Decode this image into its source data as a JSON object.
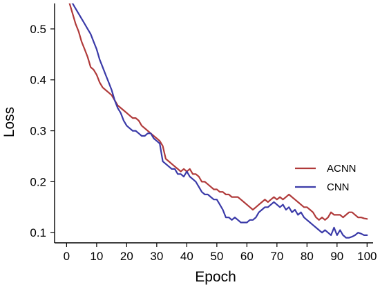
{
  "chart_data": {
    "type": "line",
    "title": "",
    "xlabel": "Epoch",
    "ylabel": "Loss",
    "xlim": [
      -4,
      102
    ],
    "ylim": [
      0.08,
      0.55
    ],
    "xticks": [
      0,
      10,
      20,
      30,
      40,
      50,
      60,
      70,
      80,
      90,
      100
    ],
    "xtick_labels": [
      "0",
      "10",
      "20",
      "30",
      "40",
      "50",
      "60",
      "70",
      "80",
      "90",
      "100"
    ],
    "yticks": [
      0.1,
      0.2,
      0.3,
      0.4,
      0.5
    ],
    "ytick_labels": [
      "0.1",
      "0.2",
      "0.3",
      "0.4",
      "0.5"
    ],
    "grid": false,
    "legend_position": "center-right",
    "series": [
      {
        "name": "ACNN",
        "color": "#b03a3a",
        "x": [
          1,
          2,
          3,
          4,
          5,
          6,
          7,
          8,
          9,
          10,
          11,
          12,
          13,
          14,
          15,
          16,
          17,
          18,
          19,
          20,
          21,
          22,
          23,
          24,
          25,
          26,
          27,
          28,
          29,
          30,
          31,
          32,
          33,
          34,
          35,
          36,
          37,
          38,
          39,
          40,
          41,
          42,
          43,
          44,
          45,
          46,
          47,
          48,
          49,
          50,
          51,
          52,
          53,
          54,
          55,
          56,
          57,
          58,
          59,
          60,
          61,
          62,
          63,
          64,
          65,
          66,
          67,
          68,
          69,
          70,
          71,
          72,
          73,
          74,
          75,
          76,
          77,
          78,
          79,
          80,
          81,
          82,
          83,
          84,
          85,
          86,
          87,
          88,
          89,
          90,
          91,
          92,
          93,
          94,
          95,
          96,
          97,
          98,
          99,
          100
        ],
        "y": [
          0.55,
          0.53,
          0.51,
          0.495,
          0.475,
          0.46,
          0.445,
          0.425,
          0.42,
          0.41,
          0.395,
          0.385,
          0.38,
          0.375,
          0.37,
          0.36,
          0.35,
          0.345,
          0.34,
          0.335,
          0.33,
          0.325,
          0.325,
          0.32,
          0.31,
          0.305,
          0.3,
          0.295,
          0.29,
          0.285,
          0.28,
          0.27,
          0.245,
          0.24,
          0.235,
          0.23,
          0.225,
          0.22,
          0.225,
          0.22,
          0.225,
          0.215,
          0.215,
          0.21,
          0.2,
          0.2,
          0.195,
          0.19,
          0.185,
          0.185,
          0.18,
          0.18,
          0.175,
          0.175,
          0.17,
          0.17,
          0.17,
          0.165,
          0.16,
          0.155,
          0.15,
          0.145,
          0.15,
          0.155,
          0.16,
          0.165,
          0.16,
          0.165,
          0.17,
          0.165,
          0.17,
          0.165,
          0.17,
          0.175,
          0.17,
          0.165,
          0.16,
          0.155,
          0.15,
          0.15,
          0.145,
          0.14,
          0.13,
          0.125,
          0.13,
          0.125,
          0.13,
          0.14,
          0.135,
          0.135,
          0.135,
          0.13,
          0.135,
          0.14,
          0.14,
          0.135,
          0.13,
          0.13,
          0.128,
          0.127
        ]
      },
      {
        "name": "CNN",
        "color": "#3a3aa8",
        "x": [
          1,
          2,
          3,
          4,
          5,
          6,
          7,
          8,
          9,
          10,
          11,
          12,
          13,
          14,
          15,
          16,
          17,
          18,
          19,
          20,
          21,
          22,
          23,
          24,
          25,
          26,
          27,
          28,
          29,
          30,
          31,
          32,
          33,
          34,
          35,
          36,
          37,
          38,
          39,
          40,
          41,
          42,
          43,
          44,
          45,
          46,
          47,
          48,
          49,
          50,
          51,
          52,
          53,
          54,
          55,
          56,
          57,
          58,
          59,
          60,
          61,
          62,
          63,
          64,
          65,
          66,
          67,
          68,
          69,
          70,
          71,
          72,
          73,
          74,
          75,
          76,
          77,
          78,
          79,
          80,
          81,
          82,
          83,
          84,
          85,
          86,
          87,
          88,
          89,
          90,
          91,
          92,
          93,
          94,
          95,
          96,
          97,
          98,
          99,
          100
        ],
        "y": [
          0.555,
          0.55,
          0.54,
          0.53,
          0.52,
          0.51,
          0.5,
          0.49,
          0.475,
          0.46,
          0.44,
          0.425,
          0.41,
          0.395,
          0.38,
          0.36,
          0.345,
          0.335,
          0.32,
          0.31,
          0.305,
          0.3,
          0.3,
          0.295,
          0.29,
          0.29,
          0.295,
          0.295,
          0.285,
          0.28,
          0.275,
          0.24,
          0.235,
          0.23,
          0.225,
          0.225,
          0.215,
          0.215,
          0.21,
          0.22,
          0.21,
          0.205,
          0.2,
          0.19,
          0.18,
          0.175,
          0.175,
          0.17,
          0.165,
          0.165,
          0.155,
          0.145,
          0.13,
          0.13,
          0.125,
          0.13,
          0.125,
          0.12,
          0.12,
          0.12,
          0.125,
          0.125,
          0.13,
          0.14,
          0.145,
          0.15,
          0.15,
          0.155,
          0.16,
          0.155,
          0.15,
          0.155,
          0.145,
          0.15,
          0.14,
          0.145,
          0.135,
          0.14,
          0.13,
          0.125,
          0.12,
          0.115,
          0.11,
          0.105,
          0.1,
          0.105,
          0.1,
          0.095,
          0.11,
          0.095,
          0.105,
          0.095,
          0.09,
          0.09,
          0.092,
          0.095,
          0.1,
          0.098,
          0.095,
          0.095
        ]
      }
    ]
  }
}
